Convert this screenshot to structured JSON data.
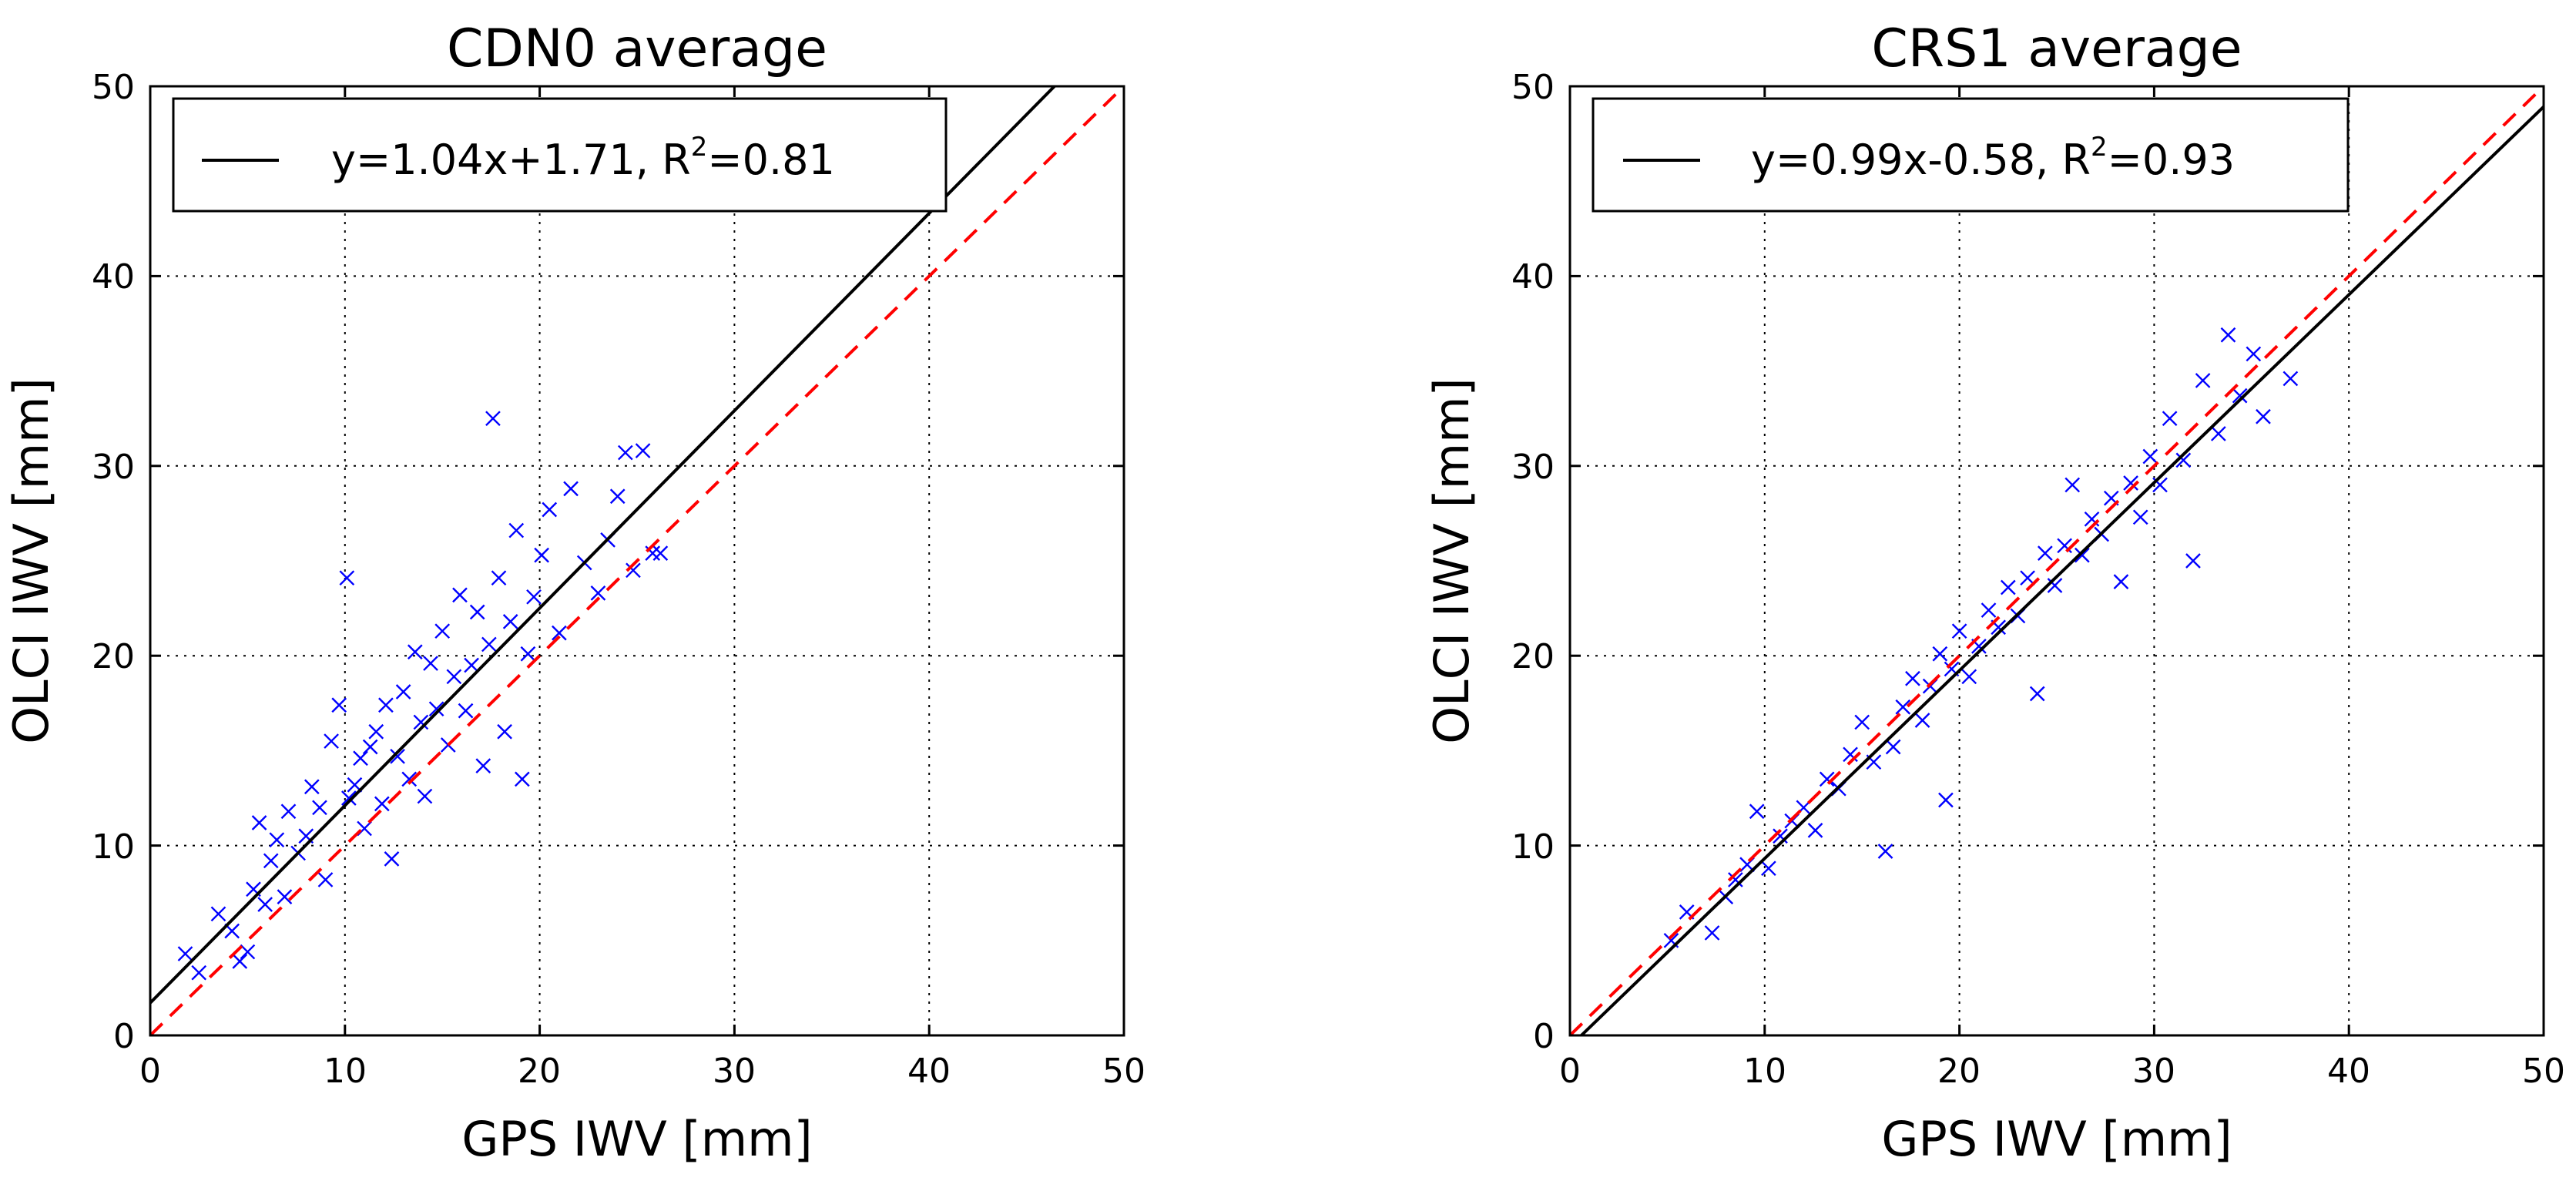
{
  "chart_data": [
    {
      "type": "scatter",
      "title": "CDN0 average",
      "xlabel": "GPS IWV [mm]",
      "ylabel": "OLCI IWV [mm]",
      "xlim": [
        0,
        50
      ],
      "ylim": [
        0,
        50
      ],
      "xticks": [
        "0",
        "10",
        "20",
        "30",
        "40",
        "50"
      ],
      "yticks": [
        "0",
        "10",
        "20",
        "30",
        "40",
        "50"
      ],
      "grid": true,
      "legend": {
        "placement": "top-left",
        "fit_label": "y=1.04x+1.71, R",
        "r2_sup": "2",
        "r2_value": "=0.81"
      },
      "fit": {
        "slope": 1.04,
        "intercept": 1.71,
        "color": "#000000"
      },
      "identity": {
        "slope": 1,
        "intercept": 0,
        "color": "#ff0000",
        "style": "dashed"
      },
      "marker_color": "#0000ff",
      "points": [
        [
          1.8,
          4.3
        ],
        [
          2.5,
          3.3
        ],
        [
          3.5,
          6.4
        ],
        [
          4.2,
          5.5
        ],
        [
          4.6,
          3.9
        ],
        [
          5.0,
          4.4
        ],
        [
          5.3,
          7.7
        ],
        [
          5.6,
          11.2
        ],
        [
          5.9,
          6.9
        ],
        [
          6.2,
          9.2
        ],
        [
          6.5,
          10.3
        ],
        [
          6.9,
          7.3
        ],
        [
          7.1,
          11.8
        ],
        [
          7.6,
          9.6
        ],
        [
          8.0,
          10.5
        ],
        [
          8.3,
          13.1
        ],
        [
          8.7,
          12.0
        ],
        [
          9.0,
          8.2
        ],
        [
          9.3,
          15.5
        ],
        [
          9.7,
          17.4
        ],
        [
          10.1,
          24.1
        ],
        [
          10.2,
          12.5
        ],
        [
          10.5,
          13.2
        ],
        [
          10.8,
          14.6
        ],
        [
          11.0,
          10.9
        ],
        [
          11.3,
          15.2
        ],
        [
          11.6,
          16.0
        ],
        [
          11.9,
          12.2
        ],
        [
          12.1,
          17.4
        ],
        [
          12.4,
          9.3
        ],
        [
          12.7,
          14.7
        ],
        [
          13.0,
          18.1
        ],
        [
          13.3,
          13.5
        ],
        [
          13.6,
          20.2
        ],
        [
          13.9,
          16.5
        ],
        [
          14.1,
          12.6
        ],
        [
          14.4,
          19.6
        ],
        [
          14.7,
          17.2
        ],
        [
          15.0,
          21.3
        ],
        [
          15.3,
          15.3
        ],
        [
          15.6,
          18.9
        ],
        [
          15.9,
          23.2
        ],
        [
          16.2,
          17.1
        ],
        [
          16.5,
          19.5
        ],
        [
          16.8,
          22.3
        ],
        [
          17.1,
          14.2
        ],
        [
          17.4,
          20.6
        ],
        [
          17.6,
          32.5
        ],
        [
          17.9,
          24.1
        ],
        [
          18.2,
          16.0
        ],
        [
          18.5,
          21.8
        ],
        [
          18.8,
          26.6
        ],
        [
          19.1,
          13.5
        ],
        [
          19.4,
          20.1
        ],
        [
          19.7,
          23.1
        ],
        [
          20.1,
          25.3
        ],
        [
          20.5,
          27.7
        ],
        [
          21.0,
          21.2
        ],
        [
          21.6,
          28.8
        ],
        [
          22.3,
          24.9
        ],
        [
          23.0,
          23.3
        ],
        [
          23.5,
          26.1
        ],
        [
          24.0,
          28.4
        ],
        [
          24.4,
          30.7
        ],
        [
          24.8,
          24.5
        ],
        [
          25.3,
          30.8
        ],
        [
          25.8,
          25.4
        ],
        [
          26.2,
          25.4
        ]
      ]
    },
    {
      "type": "scatter",
      "title": "CRS1 average",
      "xlabel": "GPS IWV [mm]",
      "ylabel": "OLCI IWV [mm]",
      "xlim": [
        0,
        50
      ],
      "ylim": [
        0,
        50
      ],
      "xticks": [
        "0",
        "10",
        "20",
        "30",
        "40",
        "50"
      ],
      "yticks": [
        "0",
        "10",
        "20",
        "30",
        "40",
        "50"
      ],
      "grid": true,
      "legend": {
        "placement": "top-left",
        "fit_label": "y=0.99x-0.58, R",
        "r2_sup": "2",
        "r2_value": "=0.93"
      },
      "fit": {
        "slope": 0.99,
        "intercept": -0.58,
        "color": "#000000"
      },
      "identity": {
        "slope": 1,
        "intercept": 0,
        "color": "#ff0000",
        "style": "dashed"
      },
      "marker_color": "#0000ff",
      "points": [
        [
          5.2,
          5.0
        ],
        [
          6.0,
          6.5
        ],
        [
          7.3,
          5.4
        ],
        [
          8.0,
          7.3
        ],
        [
          8.5,
          8.2
        ],
        [
          9.1,
          9.0
        ],
        [
          9.6,
          11.8
        ],
        [
          10.2,
          8.8
        ],
        [
          10.8,
          10.5
        ],
        [
          11.4,
          11.3
        ],
        [
          12.0,
          12.0
        ],
        [
          12.6,
          10.8
        ],
        [
          13.2,
          13.5
        ],
        [
          13.8,
          13.0
        ],
        [
          14.4,
          14.8
        ],
        [
          15.0,
          16.5
        ],
        [
          15.6,
          14.4
        ],
        [
          16.2,
          9.7
        ],
        [
          16.6,
          15.2
        ],
        [
          17.1,
          17.3
        ],
        [
          17.6,
          18.8
        ],
        [
          18.1,
          16.6
        ],
        [
          18.5,
          18.4
        ],
        [
          19.0,
          20.1
        ],
        [
          19.3,
          12.4
        ],
        [
          19.6,
          19.3
        ],
        [
          20.0,
          21.3
        ],
        [
          20.5,
          18.9
        ],
        [
          21.0,
          20.5
        ],
        [
          21.5,
          22.4
        ],
        [
          22.0,
          21.5
        ],
        [
          22.5,
          23.6
        ],
        [
          23.0,
          22.1
        ],
        [
          23.5,
          24.1
        ],
        [
          24.0,
          18.0
        ],
        [
          24.4,
          25.4
        ],
        [
          24.9,
          23.7
        ],
        [
          25.4,
          25.8
        ],
        [
          25.8,
          29.0
        ],
        [
          26.3,
          25.3
        ],
        [
          26.8,
          27.2
        ],
        [
          27.3,
          26.4
        ],
        [
          27.8,
          28.3
        ],
        [
          28.3,
          23.9
        ],
        [
          28.8,
          29.1
        ],
        [
          29.3,
          27.3
        ],
        [
          29.8,
          30.5
        ],
        [
          30.3,
          29.0
        ],
        [
          30.8,
          32.5
        ],
        [
          31.5,
          30.3
        ],
        [
          32.0,
          25.0
        ],
        [
          32.5,
          34.5
        ],
        [
          33.3,
          31.7
        ],
        [
          33.8,
          36.9
        ],
        [
          34.4,
          33.7
        ],
        [
          35.1,
          35.9
        ],
        [
          35.6,
          32.6
        ],
        [
          37.0,
          34.6
        ]
      ]
    }
  ]
}
